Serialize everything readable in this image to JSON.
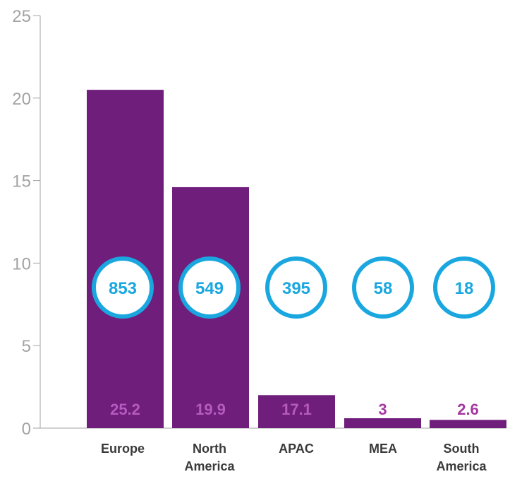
{
  "chart_data": {
    "type": "bar",
    "categories": [
      "Europe",
      "North America",
      "APAC",
      "MEA",
      "South America"
    ],
    "category_lines": [
      [
        "Europe"
      ],
      [
        "North",
        "America"
      ],
      [
        "APAC"
      ],
      [
        "MEA"
      ],
      [
        "South",
        "America"
      ]
    ],
    "values": [
      20.5,
      14.6,
      2.0,
      0.6,
      0.5
    ],
    "bar_labels": [
      "25.2",
      "19.9",
      "17.1",
      "3",
      "2.6"
    ],
    "circle_labels": [
      "853",
      "549",
      "395",
      "58",
      "18"
    ],
    "ylim": [
      0,
      25
    ],
    "yticks": [
      0,
      5,
      10,
      15,
      20,
      25
    ],
    "title": "",
    "xlabel": "",
    "ylabel": "",
    "grid": false,
    "colors": {
      "bar": "#701e7b",
      "label_on_bar": "#b55bbf",
      "label_above": "#a4389f",
      "circle": "#1aa7e0",
      "axis": "#a3a3a3",
      "category": "#3a3a3a"
    }
  }
}
